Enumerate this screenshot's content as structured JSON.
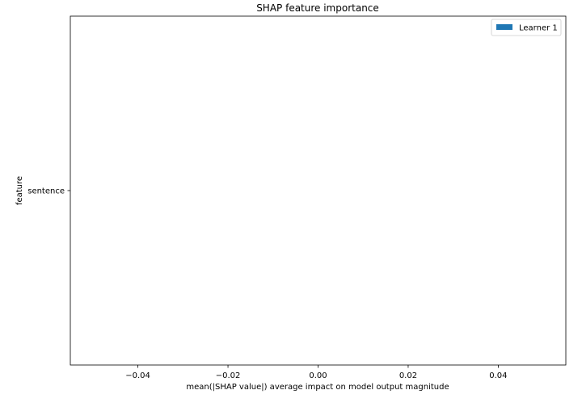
{
  "chart_data": {
    "type": "bar",
    "orientation": "horizontal",
    "title": "SHAP feature importance",
    "xlabel": "mean(|SHAP value|) average impact on model output magnitude",
    "ylabel": "feature",
    "categories": [
      "sentence"
    ],
    "series": [
      {
        "name": "Learner 1",
        "values": [
          0
        ],
        "color": "#1f77b4"
      }
    ],
    "xlim": [
      -0.055,
      0.055
    ],
    "xticks": [
      -0.04,
      -0.02,
      0.0,
      0.02,
      0.04
    ],
    "xtick_labels": [
      "−0.04",
      "−0.02",
      "0.00",
      "0.02",
      "0.04"
    ],
    "grid": false,
    "legend_position": "top-right"
  }
}
